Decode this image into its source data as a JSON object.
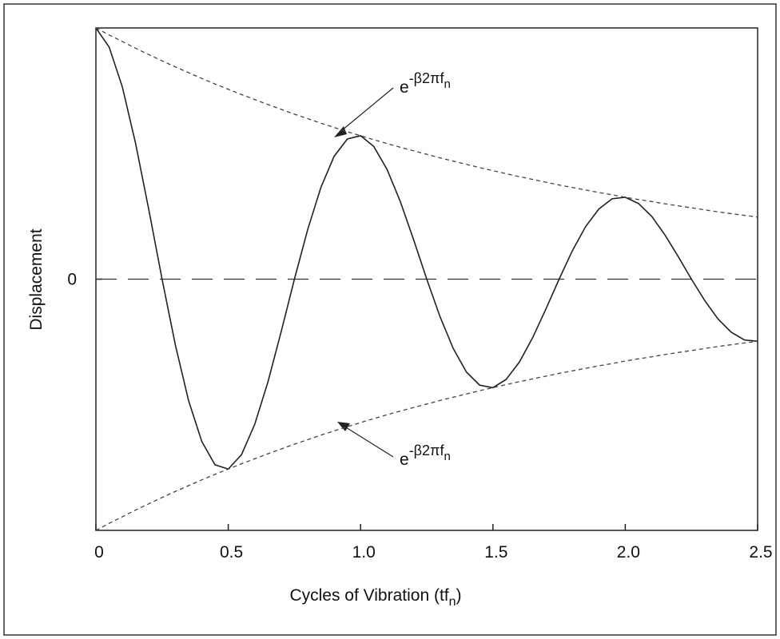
{
  "chart_data": {
    "type": "line",
    "xlabel": {
      "text": "Cycles of Vibration (tf",
      "subscript": "n",
      "close": ")"
    },
    "ylabel": "Displacement",
    "xlim": [
      0,
      2.5
    ],
    "ylim": [
      -1,
      1
    ],
    "xticks": [
      0,
      0.5,
      {
        "value": 1,
        "label": "1.0"
      },
      1.5,
      {
        "value": 2,
        "label": "2.0"
      },
      2.5
    ],
    "yticks": [
      0
    ],
    "zero_line": "long-dash",
    "x": [
      0,
      0.05,
      0.1,
      0.15,
      0.2,
      0.25,
      0.3,
      0.35,
      0.4,
      0.45,
      0.5,
      0.55,
      0.6,
      0.65,
      0.7,
      0.75,
      0.8,
      0.85,
      0.9,
      0.95,
      1,
      1.05,
      1.1,
      1.15,
      1.2,
      1.25,
      1.3,
      1.35,
      1.4,
      1.45,
      1.5,
      1.55,
      1.6,
      1.65,
      1.7,
      1.75,
      1.8,
      1.85,
      1.9,
      1.95,
      2,
      2.05,
      2.1,
      2.15,
      2.2,
      2.25,
      2.3,
      2.35,
      2.4,
      2.45,
      2.5
    ],
    "series": [
      {
        "color": "#222222",
        "dash": "solid",
        "values": [
          1,
          0.924,
          0.765,
          0.54,
          0.276,
          0,
          -0.261,
          -0.483,
          -0.646,
          -0.739,
          -0.756,
          -0.699,
          -0.578,
          -0.409,
          -0.209,
          0,
          0.197,
          0.365,
          0.489,
          0.558,
          0.571,
          0.528,
          0.437,
          0.309,
          0.158,
          0,
          -0.149,
          -0.276,
          -0.37,
          -0.422,
          -0.432,
          -0.399,
          -0.33,
          -0.233,
          -0.119,
          0,
          0.113,
          0.209,
          0.279,
          0.32,
          0.326,
          0.301,
          0.25,
          0.176,
          0.09,
          0,
          -0.085,
          -0.158,
          -0.211,
          -0.242,
          -0.247
        ]
      },
      {
        "color": "#444444",
        "dash": "short",
        "values": [
          1,
          0.972,
          0.946,
          0.919,
          0.894,
          0.869,
          0.845,
          0.822,
          0.799,
          0.777,
          0.756,
          0.735,
          0.715,
          0.695,
          0.676,
          0.657,
          0.639,
          0.621,
          0.604,
          0.587,
          0.571,
          0.555,
          0.54,
          0.525,
          0.511,
          0.497,
          0.483,
          0.47,
          0.457,
          0.444,
          0.432,
          0.42,
          0.408,
          0.397,
          0.386,
          0.375,
          0.365,
          0.355,
          0.345,
          0.336,
          0.326,
          0.317,
          0.309,
          0.3,
          0.292,
          0.284,
          0.276,
          0.268,
          0.261,
          0.254,
          0.247
        ]
      },
      {
        "color": "#444444",
        "dash": "short",
        "values": [
          -1,
          -0.972,
          -0.946,
          -0.919,
          -0.894,
          -0.869,
          -0.845,
          -0.822,
          -0.799,
          -0.777,
          -0.756,
          -0.735,
          -0.715,
          -0.695,
          -0.676,
          -0.657,
          -0.639,
          -0.621,
          -0.604,
          -0.587,
          -0.571,
          -0.555,
          -0.54,
          -0.525,
          -0.511,
          -0.497,
          -0.483,
          -0.47,
          -0.457,
          -0.444,
          -0.432,
          -0.42,
          -0.408,
          -0.397,
          -0.386,
          -0.375,
          -0.365,
          -0.355,
          -0.345,
          -0.336,
          -0.326,
          -0.317,
          -0.309,
          -0.3,
          -0.292,
          -0.284,
          -0.276,
          -0.268,
          -0.261,
          -0.254,
          -0.247
        ]
      }
    ],
    "annotations": [
      {
        "base": "e",
        "superscript": "-β2πf",
        "subscript": "n"
      },
      {
        "base": "e",
        "superscript": "-β2πf",
        "subscript": "n"
      }
    ]
  }
}
